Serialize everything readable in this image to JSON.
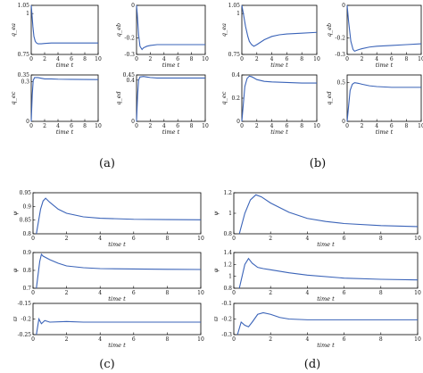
{
  "line_color": "#3a63b8",
  "captions": [
    "(a)",
    "(b)",
    "(c)",
    "(d)"
  ],
  "chart_data": [
    {
      "id": "a1",
      "type": "line",
      "group": "(a)",
      "ylabel": "q_ea",
      "xlabel": "time t",
      "xlim": [
        0,
        10
      ],
      "ylim": [
        0.75,
        1.05
      ],
      "xticks": [
        0,
        2,
        4,
        6,
        8,
        10
      ],
      "yticks": [
        0.75,
        1,
        1.05
      ],
      "ytick_labels": [
        "0.75",
        "1",
        "1.05"
      ],
      "series": [
        {
          "x": [
            0,
            0.1,
            0.25,
            0.4,
            0.6,
            0.8,
            1,
            1.5,
            2,
            3,
            4,
            6,
            8,
            10
          ],
          "y": [
            1.05,
            1.0,
            0.92,
            0.86,
            0.83,
            0.82,
            0.815,
            0.815,
            0.817,
            0.82,
            0.82,
            0.82,
            0.82,
            0.82
          ]
        }
      ]
    },
    {
      "id": "a2",
      "type": "line",
      "group": "(a)",
      "ylabel": "q_eb",
      "xlabel": "time t",
      "xlim": [
        0,
        10
      ],
      "ylim": [
        -0.3,
        0
      ],
      "xticks": [
        0,
        2,
        4,
        6,
        8,
        10
      ],
      "yticks": [
        0,
        -0.2,
        -0.3
      ],
      "ytick_labels": [
        "0",
        "-0.2",
        "-0.3"
      ],
      "series": [
        {
          "x": [
            0,
            0.1,
            0.3,
            0.5,
            0.8,
            1,
            1.5,
            2,
            3,
            4,
            6,
            8,
            10
          ],
          "y": [
            0,
            -0.05,
            -0.18,
            -0.25,
            -0.27,
            -0.26,
            -0.25,
            -0.245,
            -0.24,
            -0.24,
            -0.24,
            -0.24,
            -0.24
          ]
        }
      ]
    },
    {
      "id": "a3",
      "type": "line",
      "group": "(a)",
      "ylabel": "q_ec",
      "xlabel": "time t",
      "xlim": [
        0,
        10
      ],
      "ylim": [
        0,
        0.35
      ],
      "xticks": [
        0,
        2,
        4,
        6,
        8,
        10
      ],
      "yticks": [
        0,
        0.3,
        0.35
      ],
      "ytick_labels": [
        "0",
        "0.3",
        "0.35"
      ],
      "series": [
        {
          "x": [
            0,
            0.15,
            0.3,
            0.5,
            1,
            1.5,
            2,
            3,
            4,
            6,
            8,
            10
          ],
          "y": [
            0,
            0.2,
            0.31,
            0.33,
            0.33,
            0.325,
            0.32,
            0.32,
            0.318,
            0.317,
            0.316,
            0.315
          ]
        }
      ]
    },
    {
      "id": "a4",
      "type": "line",
      "group": "(a)",
      "ylabel": "q_ed",
      "xlabel": "time t",
      "xlim": [
        0,
        10
      ],
      "ylim": [
        0,
        0.45
      ],
      "xticks": [
        0,
        2,
        4,
        6,
        8,
        10
      ],
      "yticks": [
        0,
        0.4,
        0.45
      ],
      "ytick_labels": [
        "0",
        "0.4",
        "0.45"
      ],
      "series": [
        {
          "x": [
            0,
            0.15,
            0.3,
            0.5,
            1,
            1.5,
            2,
            3,
            4,
            6,
            8,
            10
          ],
          "y": [
            0,
            0.25,
            0.4,
            0.43,
            0.435,
            0.43,
            0.425,
            0.42,
            0.42,
            0.42,
            0.42,
            0.42
          ]
        }
      ]
    },
    {
      "id": "b1",
      "type": "line",
      "group": "(b)",
      "ylabel": "q_ea",
      "xlabel": "time t",
      "xlim": [
        0,
        10
      ],
      "ylim": [
        0.75,
        1.05
      ],
      "xticks": [
        0,
        2,
        4,
        6,
        8,
        10
      ],
      "yticks": [
        0.75,
        1,
        1.05
      ],
      "ytick_labels": [
        "0.75",
        "1",
        "1.05"
      ],
      "series": [
        {
          "x": [
            0,
            0.2,
            0.5,
            0.8,
            1,
            1.3,
            1.6,
            2,
            3,
            4,
            5,
            6,
            8,
            10
          ],
          "y": [
            1.05,
            1.0,
            0.92,
            0.86,
            0.83,
            0.81,
            0.8,
            0.81,
            0.84,
            0.86,
            0.87,
            0.875,
            0.88,
            0.885
          ]
        }
      ]
    },
    {
      "id": "b2",
      "type": "line",
      "group": "(b)",
      "ylabel": "q_eb",
      "xlabel": "time t",
      "xlim": [
        0,
        10
      ],
      "ylim": [
        -0.3,
        0
      ],
      "xticks": [
        0,
        2,
        4,
        6,
        8,
        10
      ],
      "yticks": [
        0,
        -0.2,
        -0.3
      ],
      "ytick_labels": [
        "0",
        "-0.2",
        "-0.3"
      ],
      "series": [
        {
          "x": [
            0,
            0.2,
            0.5,
            0.8,
            1,
            1.3,
            1.6,
            2,
            3,
            4,
            6,
            8,
            10
          ],
          "y": [
            0,
            -0.1,
            -0.22,
            -0.27,
            -0.28,
            -0.275,
            -0.27,
            -0.265,
            -0.255,
            -0.25,
            -0.245,
            -0.24,
            -0.235
          ]
        }
      ]
    },
    {
      "id": "b3",
      "type": "line",
      "group": "(b)",
      "ylabel": "q_ec",
      "xlabel": "time t",
      "xlim": [
        0,
        10
      ],
      "ylim": [
        0,
        0.4
      ],
      "xticks": [
        0,
        2,
        4,
        6,
        8,
        10
      ],
      "yticks": [
        0,
        0.2,
        0.4
      ],
      "ytick_labels": [
        "0",
        "0.2",
        "0.4"
      ],
      "series": [
        {
          "x": [
            0,
            0.2,
            0.4,
            0.7,
            1,
            1.3,
            1.6,
            2,
            3,
            4,
            6,
            8,
            10
          ],
          "y": [
            0,
            0.15,
            0.3,
            0.37,
            0.39,
            0.385,
            0.375,
            0.36,
            0.345,
            0.34,
            0.335,
            0.33,
            0.33
          ]
        }
      ]
    },
    {
      "id": "b4",
      "type": "line",
      "group": "(b)",
      "ylabel": "q_ed",
      "xlabel": "time t",
      "xlim": [
        0,
        10
      ],
      "ylim": [
        0,
        0.6
      ],
      "xticks": [
        0,
        2,
        4,
        6,
        8,
        10
      ],
      "yticks": [
        0,
        0.5
      ],
      "ytick_labels": [
        "0",
        "0.5"
      ],
      "series": [
        {
          "x": [
            0,
            0.2,
            0.4,
            0.7,
            1,
            1.3,
            1.6,
            2,
            3,
            4,
            6,
            8,
            10
          ],
          "y": [
            0,
            0.2,
            0.4,
            0.48,
            0.5,
            0.495,
            0.49,
            0.48,
            0.46,
            0.45,
            0.44,
            0.44,
            0.44
          ]
        }
      ]
    },
    {
      "id": "c1",
      "type": "line",
      "group": "(c)",
      "ylabel": "ψ",
      "xlabel": "time t",
      "xlim": [
        0,
        10
      ],
      "ylim": [
        0.8,
        0.95
      ],
      "xticks": [
        0,
        2,
        4,
        6,
        8,
        10
      ],
      "yticks": [
        0.8,
        0.85,
        0.9,
        0.95
      ],
      "ytick_labels": [
        "0.8",
        "0.85",
        "0.9",
        "0.95"
      ],
      "series": [
        {
          "x": [
            0.2,
            0.45,
            0.6,
            0.75,
            1,
            1.5,
            2,
            3,
            4,
            5,
            6,
            8,
            10
          ],
          "y": [
            0.8,
            0.89,
            0.92,
            0.93,
            0.915,
            0.89,
            0.875,
            0.862,
            0.857,
            0.855,
            0.853,
            0.852,
            0.851
          ]
        }
      ]
    },
    {
      "id": "c2",
      "type": "line",
      "group": "(c)",
      "ylabel": "φ",
      "xlabel": "time t",
      "xlim": [
        0,
        10
      ],
      "ylim": [
        0.7,
        0.9
      ],
      "xticks": [
        0,
        2,
        4,
        6,
        8,
        10
      ],
      "yticks": [
        0.7,
        0.8,
        0.9
      ],
      "ytick_labels": [
        "0.7",
        "0.8",
        "0.9"
      ],
      "series": [
        {
          "x": [
            0.2,
            0.4,
            0.5,
            0.6,
            1,
            1.5,
            2,
            3,
            4,
            6,
            8,
            10
          ],
          "y": [
            0.7,
            0.85,
            0.89,
            0.88,
            0.86,
            0.84,
            0.825,
            0.815,
            0.81,
            0.808,
            0.806,
            0.805
          ]
        }
      ]
    },
    {
      "id": "c3",
      "type": "line",
      "group": "(c)",
      "ylabel": "ϖ",
      "xlabel": "time t",
      "xlim": [
        0,
        10
      ],
      "ylim": [
        -0.25,
        -0.15
      ],
      "xticks": [
        0,
        2,
        4,
        6,
        8,
        10
      ],
      "yticks": [
        -0.15,
        -0.2,
        -0.25
      ],
      "ytick_labels": [
        "-0.15",
        "-0.2",
        "-0.25"
      ],
      "series": [
        {
          "x": [
            0.2,
            0.35,
            0.5,
            0.7,
            1,
            2,
            3,
            4,
            6,
            8,
            10
          ],
          "y": [
            -0.25,
            -0.2,
            -0.215,
            -0.205,
            -0.21,
            -0.208,
            -0.21,
            -0.21,
            -0.21,
            -0.21,
            -0.21
          ]
        }
      ]
    },
    {
      "id": "d1",
      "type": "line",
      "group": "(d)",
      "ylabel": "ψ",
      "xlabel": "time t",
      "xlim": [
        0,
        10
      ],
      "ylim": [
        0.8,
        1.2
      ],
      "xticks": [
        0,
        2,
        4,
        6,
        8,
        10
      ],
      "yticks": [
        0.8,
        1,
        1.2
      ],
      "ytick_labels": [
        "0.8",
        "1",
        "1.2"
      ],
      "series": [
        {
          "x": [
            0.3,
            0.6,
            0.9,
            1.2,
            1.5,
            2,
            3,
            4,
            5,
            6,
            8,
            10
          ],
          "y": [
            0.8,
            1.0,
            1.13,
            1.18,
            1.16,
            1.1,
            1.01,
            0.95,
            0.92,
            0.9,
            0.88,
            0.87
          ]
        }
      ]
    },
    {
      "id": "d2",
      "type": "line",
      "group": "(d)",
      "ylabel": "φ",
      "xlabel": "time t",
      "xlim": [
        0,
        10
      ],
      "ylim": [
        0.8,
        1.4
      ],
      "xticks": [
        0,
        2,
        4,
        6,
        8,
        10
      ],
      "yticks": [
        0.8,
        1,
        1.2,
        1.4
      ],
      "ytick_labels": [
        "0.8",
        "1",
        "1.2",
        "1.4"
      ],
      "series": [
        {
          "x": [
            0.3,
            0.6,
            0.8,
            1,
            1.3,
            1.6,
            2,
            3,
            4,
            6,
            8,
            10
          ],
          "y": [
            0.8,
            1.2,
            1.3,
            1.22,
            1.15,
            1.13,
            1.11,
            1.06,
            1.02,
            0.97,
            0.95,
            0.94
          ]
        }
      ]
    },
    {
      "id": "d3",
      "type": "line",
      "group": "(d)",
      "ylabel": "ϖ",
      "xlabel": "time t",
      "xlim": [
        0,
        10
      ],
      "ylim": [
        -0.3,
        -0.1
      ],
      "xticks": [
        0,
        2,
        4,
        6,
        8,
        10
      ],
      "yticks": [
        -0.1,
        -0.2,
        -0.3
      ],
      "ytick_labels": [
        "-0.1",
        "-0.2",
        "-0.3"
      ],
      "series": [
        {
          "x": [
            0.2,
            0.4,
            0.6,
            0.8,
            1,
            1.3,
            1.6,
            2,
            2.5,
            3,
            4,
            6,
            8,
            10
          ],
          "y": [
            -0.3,
            -0.22,
            -0.24,
            -0.25,
            -0.22,
            -0.17,
            -0.16,
            -0.17,
            -0.19,
            -0.2,
            -0.205,
            -0.205,
            -0.205,
            -0.205
          ]
        }
      ]
    }
  ]
}
